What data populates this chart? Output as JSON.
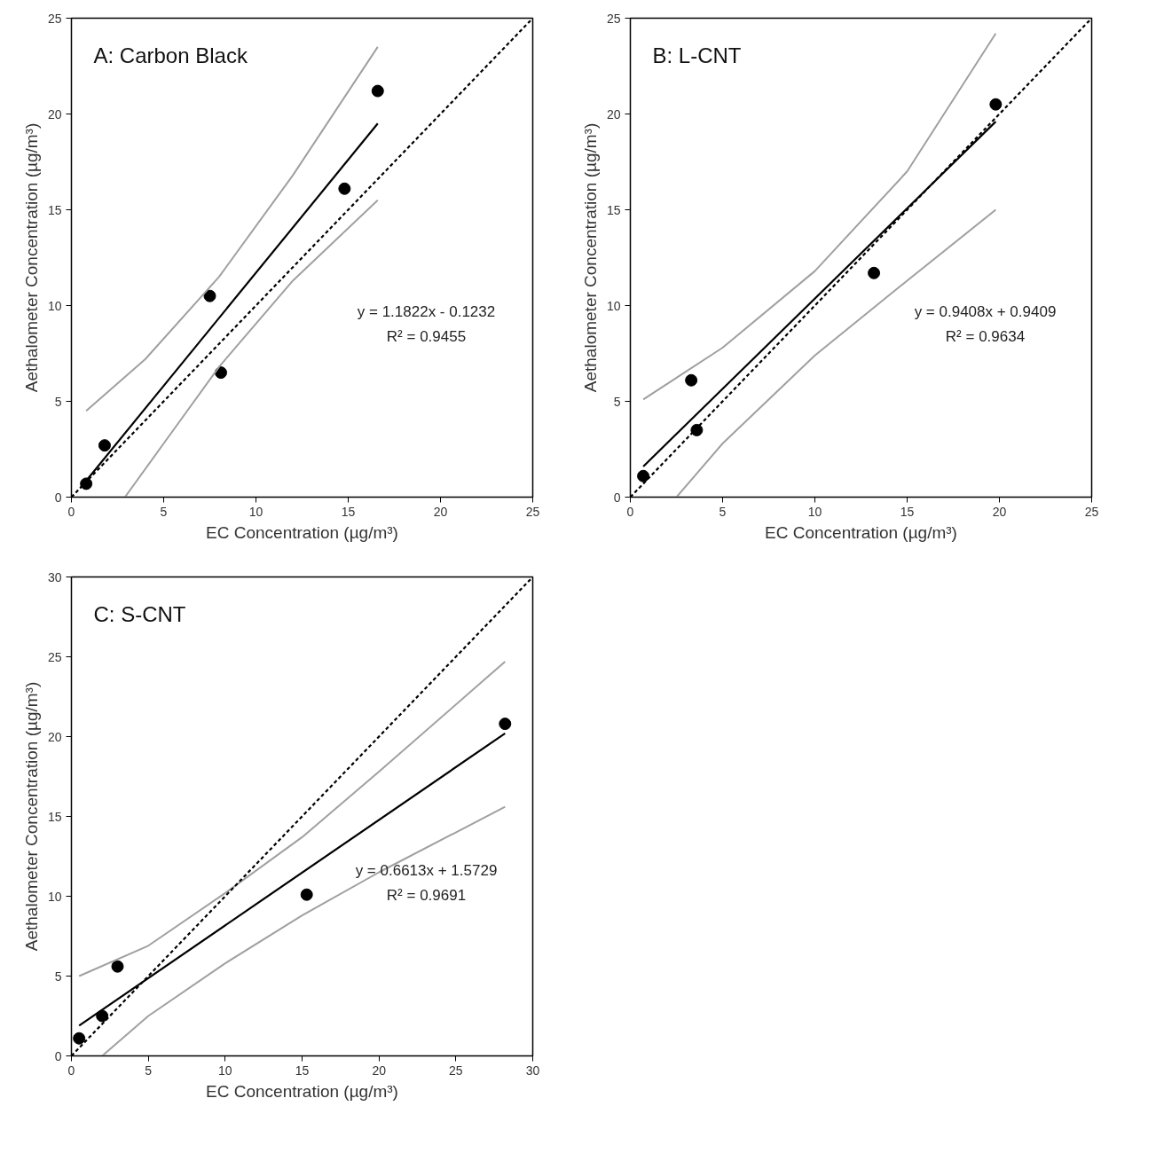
{
  "chart_data": [
    {
      "type": "scatter",
      "title": "A: Carbon Black",
      "xlabel": "EC Concentration (µg/m³)",
      "ylabel": "Aethalometer Concentration (µg/m³)",
      "xlim": [
        0,
        25
      ],
      "ylim": [
        0,
        25
      ],
      "xticks": [
        0,
        5,
        10,
        15,
        20,
        25
      ],
      "yticks": [
        0,
        5,
        10,
        15,
        20,
        25
      ],
      "grid": false,
      "marker": "circle",
      "annotations": [
        "y = 1.1822x - 0.1232",
        "R² = 0.9455"
      ],
      "series": [
        {
          "color": "#000000",
          "x": [
            0.8,
            1.8,
            7.5,
            8.1,
            14.8,
            16.6
          ],
          "values": [
            0.7,
            2.7,
            10.5,
            6.5,
            16.1,
            21.2
          ]
        },
        {
          "type": "line",
          "color": "#000000",
          "marker": "none",
          "line_style": "solid",
          "x": [
            0.5,
            16.6
          ],
          "values": [
            0.5,
            19.5
          ]
        },
        {
          "type": "line",
          "color": "#a0a0a0",
          "marker": "none",
          "line_style": "solid",
          "x": [
            0.8,
            4,
            8,
            12,
            16.6
          ],
          "values": [
            4.5,
            7.2,
            11.5,
            16.8,
            23.5
          ]
        },
        {
          "type": "line",
          "color": "#a0a0a0",
          "marker": "none",
          "line_style": "solid",
          "x": [
            2.9,
            5,
            8,
            12,
            16.6
          ],
          "values": [
            0,
            2.8,
            6.8,
            11.3,
            15.5
          ]
        },
        {
          "type": "line",
          "color": "#000000",
          "marker": "none",
          "line_style": "dashed",
          "x": [
            0,
            25
          ],
          "values": [
            0,
            25
          ]
        }
      ]
    },
    {
      "type": "scatter",
      "title": "B: L-CNT",
      "xlabel": "EC Concentration (µg/m³)",
      "ylabel": "Aethalometer Concentration (µg/m³)",
      "xlim": [
        0,
        25
      ],
      "ylim": [
        0,
        25
      ],
      "xticks": [
        0,
        5,
        10,
        15,
        20,
        25
      ],
      "yticks": [
        0,
        5,
        10,
        15,
        20,
        25
      ],
      "grid": false,
      "marker": "circle",
      "annotations": [
        "y = 0.9408x + 0.9409",
        "R² = 0.9634"
      ],
      "series": [
        {
          "color": "#000000",
          "x": [
            0.7,
            3.3,
            3.6,
            13.2,
            19.8
          ],
          "values": [
            1.1,
            6.1,
            3.5,
            11.7,
            20.5
          ]
        },
        {
          "type": "line",
          "color": "#000000",
          "marker": "none",
          "line_style": "solid",
          "x": [
            0.7,
            19.8
          ],
          "values": [
            1.6,
            19.6
          ]
        },
        {
          "type": "line",
          "color": "#a0a0a0",
          "marker": "none",
          "line_style": "solid",
          "x": [
            0.7,
            5,
            10,
            15,
            19.8
          ],
          "values": [
            5.1,
            7.8,
            11.8,
            17,
            24.2
          ]
        },
        {
          "type": "line",
          "color": "#a0a0a0",
          "marker": "none",
          "line_style": "solid",
          "x": [
            2.5,
            5,
            10,
            15,
            19.8
          ],
          "values": [
            0,
            2.8,
            7.4,
            11.3,
            15
          ]
        },
        {
          "type": "line",
          "color": "#000000",
          "marker": "none",
          "line_style": "dashed",
          "x": [
            0,
            25
          ],
          "values": [
            0,
            25
          ]
        }
      ]
    },
    {
      "type": "scatter",
      "title": "C: S-CNT",
      "xlabel": "EC Concentration (µg/m³)",
      "ylabel": "Aethalometer Concentration (µg/m³)",
      "xlim": [
        0,
        30
      ],
      "ylim": [
        0,
        30
      ],
      "xticks": [
        0,
        5,
        10,
        15,
        20,
        25,
        30
      ],
      "yticks": [
        0,
        5,
        10,
        15,
        20,
        25,
        30
      ],
      "grid": false,
      "marker": "circle",
      "annotations": [
        "y = 0.6613x + 1.5729",
        "R² = 0.9691"
      ],
      "series": [
        {
          "color": "#000000",
          "x": [
            0.5,
            2,
            3,
            15.3,
            28.2
          ],
          "values": [
            1.1,
            2.5,
            5.6,
            10.1,
            20.8
          ]
        },
        {
          "type": "line",
          "color": "#000000",
          "marker": "none",
          "line_style": "solid",
          "x": [
            0.5,
            28.2
          ],
          "values": [
            1.9,
            20.2
          ]
        },
        {
          "type": "line",
          "color": "#a0a0a0",
          "marker": "none",
          "line_style": "solid",
          "x": [
            0.5,
            5,
            10,
            15,
            20,
            28.2
          ],
          "values": [
            5,
            6.9,
            10.2,
            13.7,
            17.8,
            24.7
          ]
        },
        {
          "type": "line",
          "color": "#a0a0a0",
          "marker": "none",
          "line_style": "solid",
          "x": [
            2,
            5,
            10,
            15,
            20,
            28.2
          ],
          "values": [
            0,
            2.5,
            5.8,
            8.8,
            11.5,
            15.6
          ]
        },
        {
          "type": "line",
          "color": "#000000",
          "marker": "none",
          "line_style": "dashed",
          "x": [
            0,
            30
          ],
          "values": [
            0,
            30
          ]
        }
      ]
    }
  ]
}
